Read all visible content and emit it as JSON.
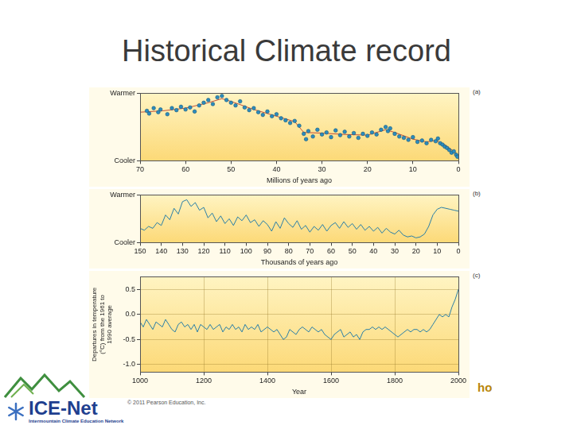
{
  "title": "Historical Climate record",
  "credit": "© 2011 Pearson Education, Inc.",
  "logo": {
    "name": "ICE-Net",
    "tagline": "Intermountain Climate Education Network"
  },
  "corner_text": "ho",
  "chart_data": [
    {
      "type": "scatter",
      "panel_label": "(a)",
      "xlabel": "Millions of years ago",
      "xlim": [
        70,
        0
      ],
      "xticks": [
        70,
        60,
        50,
        40,
        30,
        20,
        10,
        0
      ],
      "ylim": [
        0,
        10
      ],
      "yticks": [
        {
          "value": 10,
          "label": "Warmer"
        },
        {
          "value": 0,
          "label": "Cooler"
        }
      ],
      "grid": false,
      "series": [
        {
          "type": "scatter",
          "color": "#2b8cbe",
          "marker": "circle",
          "x": [
            68.5,
            68,
            67,
            66,
            65.5,
            64,
            63,
            62,
            61,
            60,
            59,
            58,
            57,
            56,
            55,
            54,
            53,
            52,
            51,
            50,
            49,
            48,
            47,
            46,
            45,
            44,
            43,
            42,
            41,
            40,
            39,
            38,
            37,
            36,
            35,
            34,
            33.5,
            33,
            32,
            31,
            30,
            29,
            28,
            27,
            26,
            25,
            24,
            23,
            22,
            21,
            20,
            19,
            18,
            17,
            16,
            15.5,
            15,
            14,
            13,
            12,
            11,
            10,
            9,
            8,
            7,
            6,
            5,
            4.5,
            4,
            3.5,
            3,
            2.5,
            2,
            1.5,
            1,
            0.5,
            0.2
          ],
          "values": [
            7.4,
            7.0,
            7.8,
            7.2,
            7.6,
            6.9,
            7.8,
            7.5,
            8.0,
            7.6,
            7.9,
            7.3,
            8.2,
            8.6,
            9.0,
            8.4,
            9.4,
            9.6,
            9.0,
            8.6,
            8.2,
            8.8,
            7.9,
            7.5,
            7.8,
            7.2,
            6.8,
            7.3,
            6.6,
            6.9,
            6.3,
            6.0,
            5.6,
            5.9,
            5.2,
            4.0,
            3.2,
            4.4,
            3.6,
            4.6,
            3.9,
            4.2,
            3.5,
            4.5,
            3.8,
            4.3,
            3.6,
            4.1,
            3.4,
            4.0,
            3.7,
            4.2,
            3.9,
            4.6,
            5.0,
            4.4,
            4.8,
            4.0,
            3.6,
            3.4,
            3.1,
            3.5,
            2.8,
            3.0,
            2.6,
            3.1,
            2.9,
            3.3,
            2.6,
            2.4,
            2.1,
            1.9,
            1.6,
            1.2,
            1.4,
            0.9,
            0.6
          ]
        },
        {
          "type": "line",
          "color": "#c0503a",
          "line_style": "solid",
          "x": [
            70,
            65,
            60,
            55,
            52,
            50,
            45,
            40,
            36,
            34,
            30,
            25,
            20,
            16,
            14,
            10,
            7,
            5,
            3,
            1,
            0
          ],
          "values": [
            7.2,
            7.4,
            7.8,
            8.6,
            9.2,
            8.8,
            7.6,
            6.6,
            5.8,
            4.2,
            4.1,
            3.9,
            3.8,
            4.6,
            4.2,
            3.2,
            2.8,
            3.0,
            2.4,
            1.4,
            0.8
          ]
        }
      ]
    },
    {
      "type": "line",
      "panel_label": "(b)",
      "xlabel": "Thousands of years ago",
      "xlim": [
        150,
        0
      ],
      "xticks": [
        150,
        140,
        130,
        120,
        110,
        100,
        90,
        80,
        70,
        60,
        50,
        40,
        30,
        20,
        10,
        0
      ],
      "ylim": [
        0,
        10
      ],
      "yticks": [
        {
          "value": 10,
          "label": "Warmer"
        },
        {
          "value": 0,
          "label": "Cooler"
        }
      ],
      "grid": false,
      "color": "#2a7fa8",
      "line_style": "solid",
      "x": [
        150,
        148,
        146,
        144,
        142,
        140,
        138,
        136,
        134,
        132,
        130,
        128,
        126,
        124,
        122,
        120,
        118,
        116,
        114,
        112,
        110,
        108,
        106,
        104,
        102,
        100,
        98,
        96,
        94,
        92,
        90,
        88,
        86,
        84,
        82,
        80,
        78,
        76,
        74,
        72,
        70,
        68,
        66,
        64,
        62,
        60,
        58,
        56,
        54,
        52,
        50,
        48,
        46,
        44,
        42,
        40,
        38,
        36,
        34,
        32,
        30,
        28,
        26,
        24,
        22,
        20,
        18,
        16,
        14,
        12,
        10,
        8,
        6,
        4,
        2,
        0
      ],
      "values": [
        3.0,
        2.6,
        3.4,
        3.0,
        4.2,
        3.6,
        5.8,
        4.8,
        7.2,
        6.0,
        8.6,
        9.0,
        7.6,
        8.4,
        6.8,
        7.4,
        5.2,
        6.2,
        4.4,
        5.6,
        4.0,
        5.0,
        3.6,
        5.4,
        4.6,
        5.8,
        4.2,
        4.8,
        3.4,
        4.6,
        3.8,
        2.4,
        4.4,
        3.0,
        5.2,
        4.0,
        3.2,
        4.6,
        2.8,
        3.6,
        2.2,
        3.4,
        2.6,
        3.8,
        2.4,
        3.6,
        4.2,
        3.0,
        4.4,
        3.2,
        4.0,
        2.8,
        3.8,
        2.6,
        3.4,
        2.4,
        3.2,
        2.0,
        3.0,
        2.2,
        1.8,
        2.6,
        1.6,
        1.2,
        1.4,
        1.0,
        1.2,
        1.8,
        3.4,
        5.8,
        7.0,
        7.4,
        7.2,
        7.0,
        6.8,
        6.6
      ]
    },
    {
      "type": "line",
      "panel_label": "(c)",
      "xlabel": "Year",
      "ylabel": "Departures in temperature (°C) from the 1961 to 1990 average",
      "xlim": [
        1000,
        2000
      ],
      "xticks": [
        1000,
        1200,
        1400,
        1600,
        1800,
        2000
      ],
      "ylim": [
        -1.15,
        0.75
      ],
      "yticks": [
        0.5,
        {
          "value": 0,
          "label": "0.0"
        },
        -0.5,
        {
          "value": -1,
          "label": "-1.0"
        }
      ],
      "grid": true,
      "color": "#2a7fa8",
      "line_style": "solid",
      "x": [
        1000,
        1010,
        1020,
        1030,
        1040,
        1050,
        1060,
        1070,
        1080,
        1090,
        1100,
        1110,
        1120,
        1130,
        1140,
        1150,
        1160,
        1170,
        1180,
        1190,
        1200,
        1210,
        1220,
        1230,
        1240,
        1250,
        1260,
        1270,
        1280,
        1290,
        1300,
        1310,
        1320,
        1330,
        1340,
        1350,
        1360,
        1370,
        1380,
        1390,
        1400,
        1410,
        1420,
        1430,
        1440,
        1450,
        1460,
        1470,
        1480,
        1490,
        1500,
        1510,
        1520,
        1530,
        1540,
        1550,
        1560,
        1570,
        1580,
        1590,
        1600,
        1610,
        1620,
        1630,
        1640,
        1650,
        1660,
        1670,
        1680,
        1690,
        1700,
        1710,
        1720,
        1730,
        1740,
        1750,
        1760,
        1770,
        1780,
        1790,
        1800,
        1810,
        1820,
        1830,
        1840,
        1850,
        1860,
        1870,
        1880,
        1890,
        1900,
        1910,
        1920,
        1930,
        1940,
        1950,
        1960,
        1970,
        1980,
        1990,
        2000
      ],
      "values": [
        -0.15,
        -0.25,
        -0.1,
        -0.2,
        -0.3,
        -0.15,
        -0.2,
        -0.25,
        -0.1,
        -0.2,
        -0.3,
        -0.35,
        -0.2,
        -0.15,
        -0.25,
        -0.2,
        -0.3,
        -0.2,
        -0.35,
        -0.2,
        -0.25,
        -0.3,
        -0.2,
        -0.3,
        -0.25,
        -0.2,
        -0.35,
        -0.25,
        -0.3,
        -0.2,
        -0.3,
        -0.25,
        -0.35,
        -0.2,
        -0.3,
        -0.25,
        -0.3,
        -0.2,
        -0.35,
        -0.3,
        -0.25,
        -0.3,
        -0.35,
        -0.3,
        -0.4,
        -0.5,
        -0.45,
        -0.3,
        -0.35,
        -0.4,
        -0.3,
        -0.25,
        -0.3,
        -0.35,
        -0.25,
        -0.3,
        -0.35,
        -0.3,
        -0.4,
        -0.45,
        -0.5,
        -0.4,
        -0.35,
        -0.3,
        -0.45,
        -0.4,
        -0.35,
        -0.45,
        -0.4,
        -0.5,
        -0.35,
        -0.3,
        -0.3,
        -0.25,
        -0.3,
        -0.25,
        -0.3,
        -0.25,
        -0.3,
        -0.35,
        -0.4,
        -0.45,
        -0.4,
        -0.35,
        -0.3,
        -0.35,
        -0.3,
        -0.3,
        -0.35,
        -0.3,
        -0.35,
        -0.3,
        -0.2,
        -0.1,
        0.0,
        -0.05,
        0.0,
        -0.05,
        0.15,
        0.3,
        0.5
      ]
    }
  ]
}
